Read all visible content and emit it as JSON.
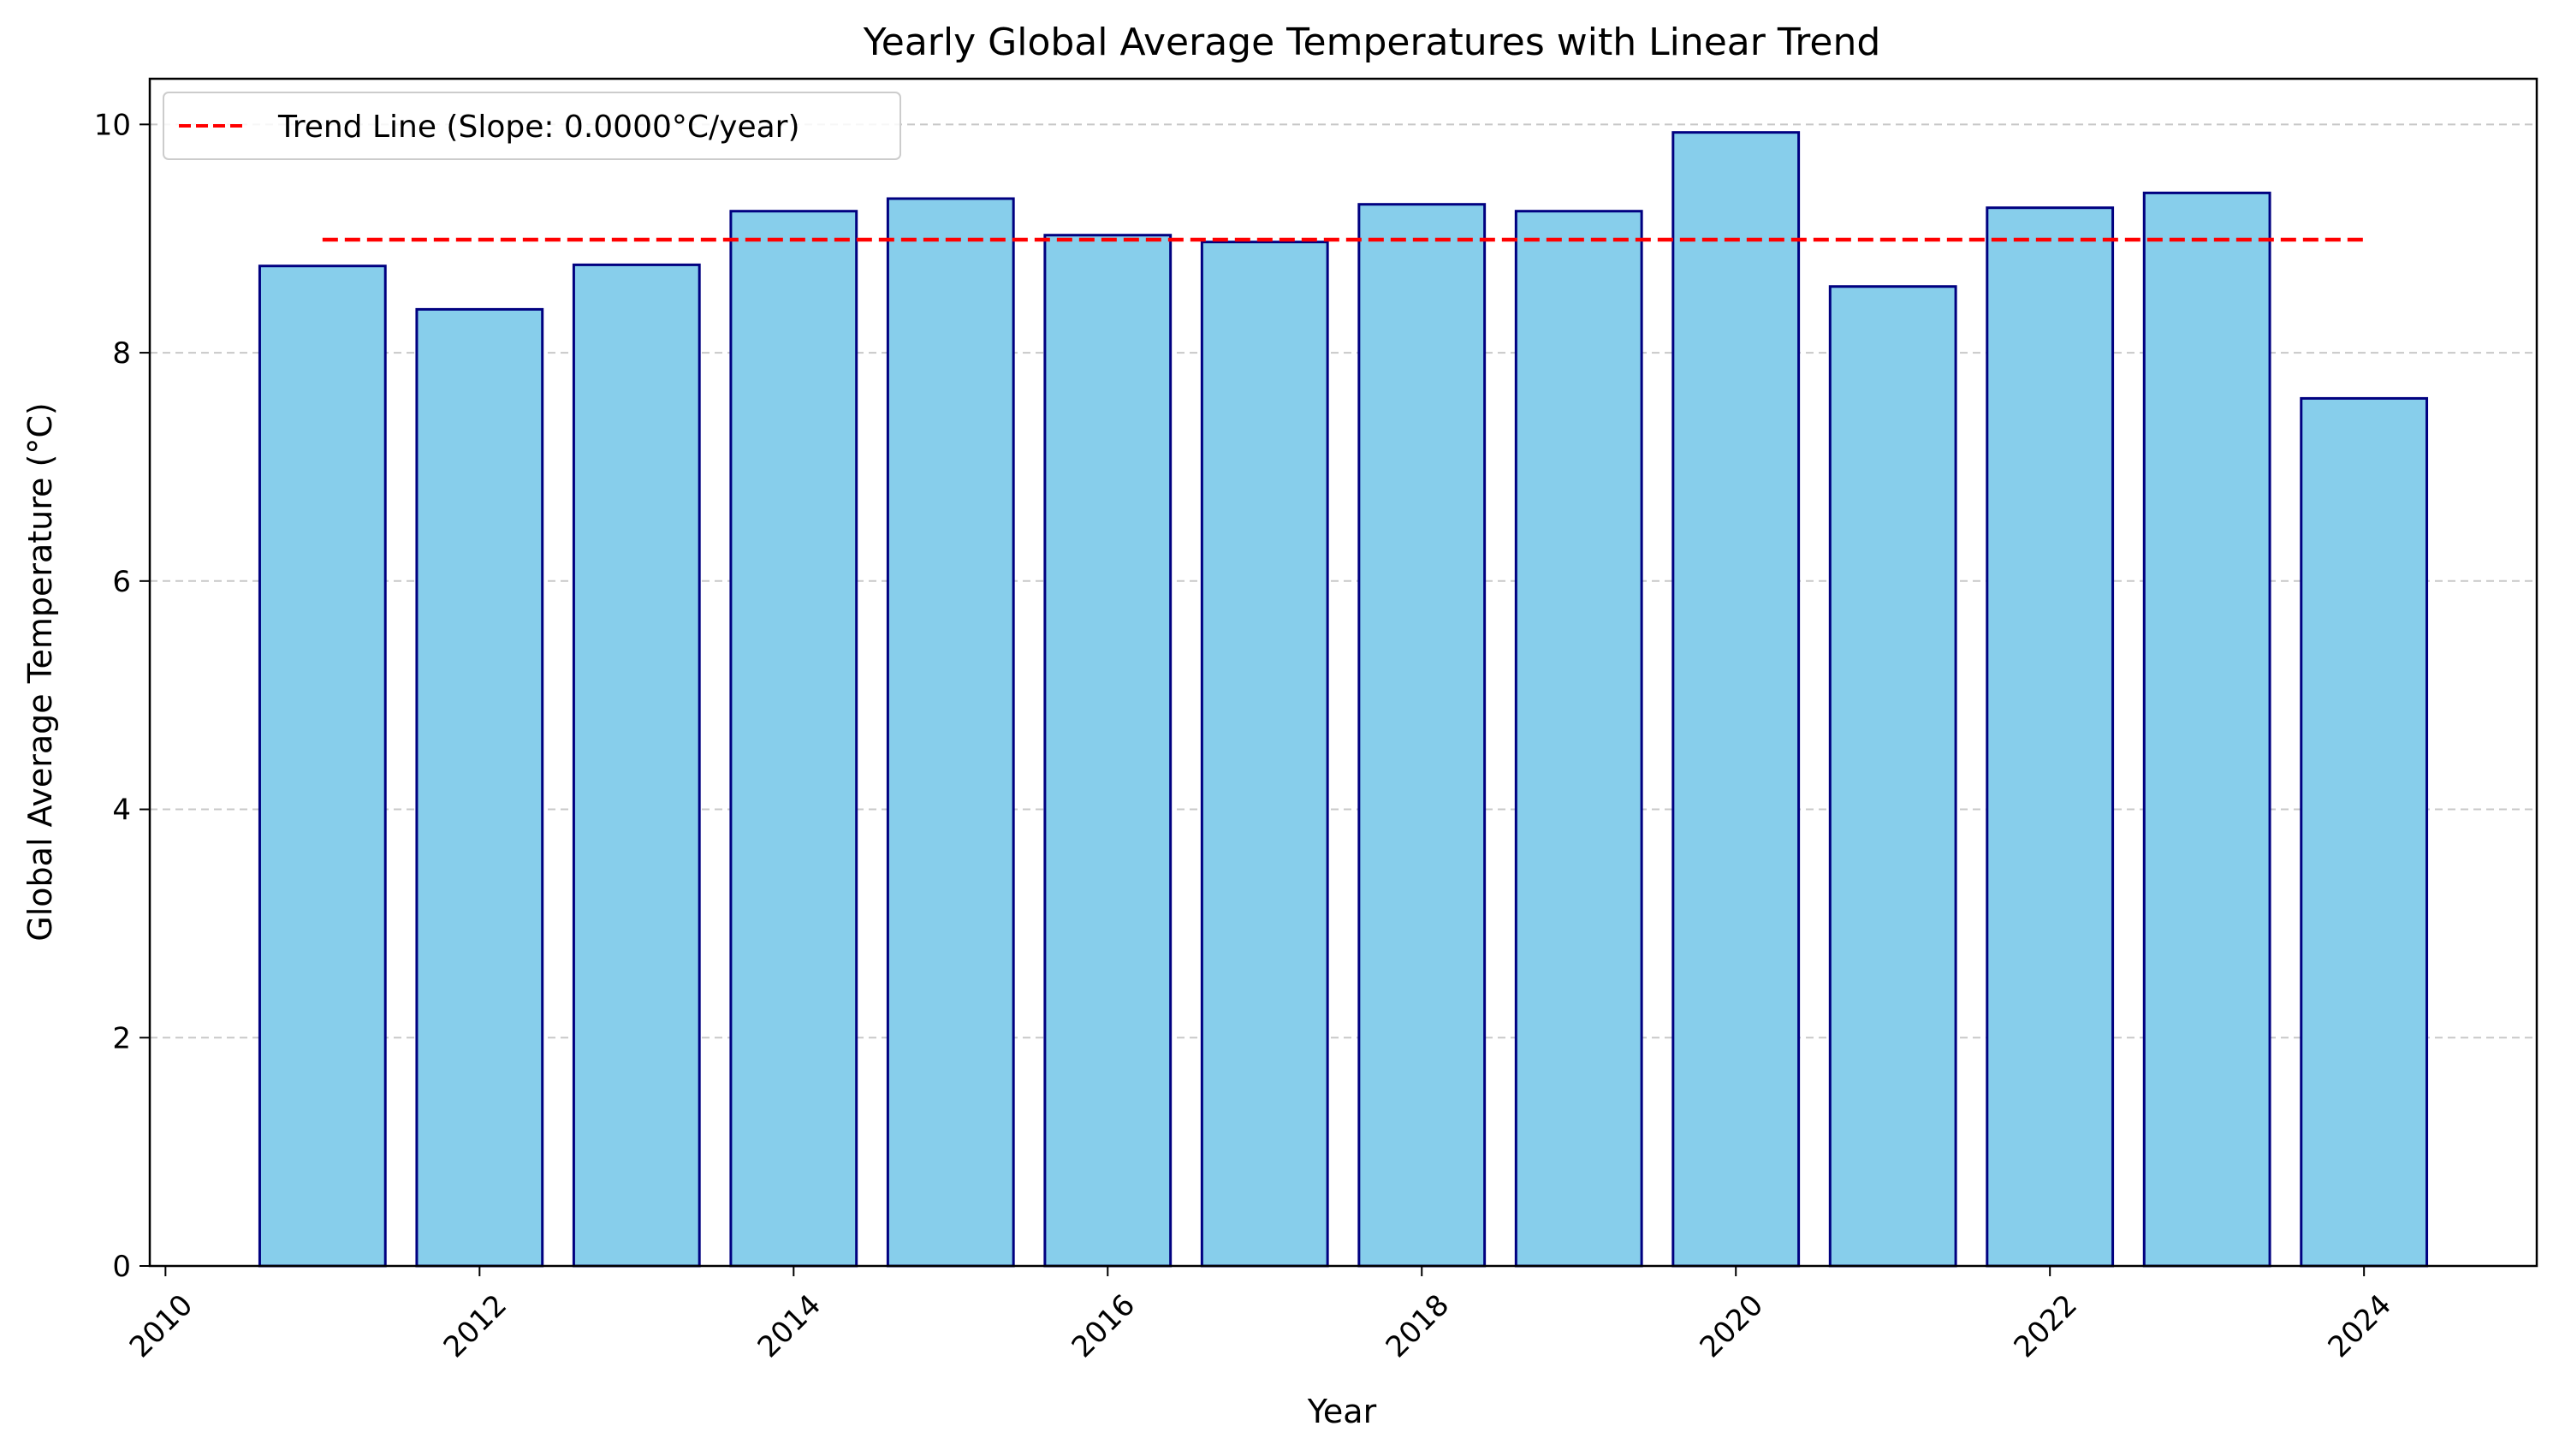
{
  "chart_data": {
    "type": "bar",
    "title": "Yearly Global Average Temperatures with Linear Trend",
    "xlabel": "Year",
    "ylabel": "Global Average Temperature (°C)",
    "x": [
      2011,
      2012,
      2013,
      2014,
      2015,
      2016,
      2017,
      2018,
      2019,
      2020,
      2021,
      2022,
      2023,
      2024
    ],
    "series": [
      {
        "values": [
          8.76,
          8.38,
          8.77,
          9.24,
          9.35,
          9.03,
          8.97,
          9.3,
          9.24,
          9.93,
          8.58,
          9.27,
          9.4,
          7.6
        ],
        "color": "#87ceeb",
        "edge_color": "#000080"
      },
      {
        "name": "Trend Line (Slope: 0.0000°C/year)",
        "type": "line",
        "style": "dashed",
        "color": "#ff0000",
        "x": [
          2011,
          2024
        ],
        "values": [
          8.99,
          8.99
        ]
      }
    ],
    "xlim": [
      2009.9,
      2025.1
    ],
    "ylim": [
      0,
      10.4
    ],
    "x_ticks": [
      "2010",
      "2012",
      "2014",
      "2016",
      "2018",
      "2020",
      "2022",
      "2024"
    ],
    "y_ticks": [
      "0",
      "2",
      "4",
      "6",
      "8",
      "10"
    ],
    "x_tick_rotation": 45,
    "grid": "y-dashed",
    "legend": "upper-left"
  }
}
